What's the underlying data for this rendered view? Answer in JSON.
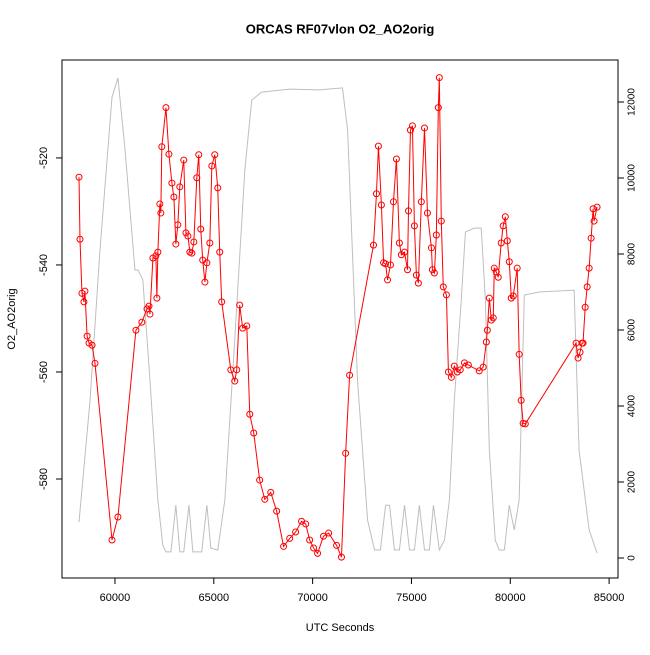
{
  "chart_data": {
    "type": "line",
    "title": "ORCAS RF07vlon O2_AO2orig",
    "xlabel": "UTC Seconds",
    "ylabel": "O2_AO2orig",
    "xlim": [
      57320,
      85450
    ],
    "xticks": [
      60000,
      65000,
      70000,
      75000,
      80000,
      85000
    ],
    "ylim": [
      -598.5,
      -501.7
    ],
    "yticks": [
      -580,
      -560,
      -540,
      -520
    ],
    "y2lim": [
      -526,
      13105
    ],
    "y2ticks": [
      0,
      2000,
      4000,
      6000,
      8000,
      10000,
      12000
    ],
    "series": [
      {
        "color": "#ff0000",
        "markers": true,
        "x": [
          58180,
          58230,
          58330,
          58430,
          58480,
          58590,
          58690,
          58840,
          58990,
          59850,
          60150,
          61060,
          61360,
          61620,
          61720,
          61770,
          61920,
          62070,
          62120,
          62170,
          62270,
          62320,
          62370,
          62580,
          62730,
          62880,
          62980,
          63080,
          63180,
          63280,
          63480,
          63590,
          63690,
          63790,
          63890,
          63990,
          64140,
          64240,
          64340,
          64440,
          64550,
          64650,
          64800,
          64900,
          65050,
          65200,
          65300,
          65400,
          65860,
          66060,
          66160,
          66310,
          66460,
          66670,
          66820,
          67020,
          67320,
          67580,
          67880,
          68180,
          68530,
          68840,
          69140,
          69440,
          69650,
          69850,
          70050,
          70250,
          70550,
          70810,
          71210,
          71460,
          71670,
          71870,
          73080,
          73230,
          73330,
          73480,
          73590,
          73690,
          73790,
          73940,
          74090,
          74240,
          74390,
          74490,
          74650,
          74800,
          74850,
          74950,
          75050,
          75150,
          75250,
          75350,
          75500,
          75660,
          75810,
          76010,
          76060,
          76160,
          76260,
          76360,
          76410,
          76510,
          76610,
          76770,
          76870,
          77020,
          77170,
          77320,
          77470,
          77680,
          77880,
          78430,
          78630,
          78790,
          78840,
          78940,
          79040,
          79140,
          79190,
          79290,
          79390,
          79540,
          79640,
          79750,
          79850,
          79950,
          80050,
          80150,
          80350,
          80450,
          80550,
          80650,
          80760,
          83330,
          83430,
          83530,
          83630,
          83680,
          83790,
          83890,
          83990,
          84090,
          84190,
          84240,
          84390
        ],
        "values": [
          -523.6,
          -535.2,
          -545.3,
          -546.9,
          -544.9,
          -553.3,
          -554.6,
          -555.0,
          -558.4,
          -591.4,
          -587.1,
          -552.2,
          -550.7,
          -548.2,
          -547.7,
          -549.2,
          -538.7,
          -538.3,
          -546.2,
          -537.6,
          -528.6,
          -530.3,
          -517.9,
          -510.6,
          -519.3,
          -524.7,
          -527.3,
          -536.1,
          -532.5,
          -525.4,
          -520.4,
          -534.0,
          -534.6,
          -537.6,
          -537.8,
          -535.7,
          -523.7,
          -519.4,
          -533.3,
          -539.1,
          -543.2,
          -539.6,
          -535.9,
          -521.5,
          -519.4,
          -525.6,
          -537.6,
          -546.9,
          -559.6,
          -561.7,
          -559.6,
          -547.5,
          -551.8,
          -551.4,
          -567.9,
          -571.4,
          -580.2,
          -583.8,
          -582.5,
          -586.0,
          -592.6,
          -591.1,
          -589.9,
          -587.9,
          -588.4,
          -591.4,
          -592.9,
          -593.9,
          -590.7,
          -590.1,
          -592.4,
          -594.6,
          -575.2,
          -560.6,
          -536.3,
          -526.7,
          -517.8,
          -528.8,
          -539.6,
          -539.8,
          -542.8,
          -540.0,
          -528.2,
          -520.2,
          -535.9,
          -538.1,
          -537.6,
          -540.9,
          -529.9,
          -514.8,
          -514.0,
          -532.7,
          -541.9,
          -543.4,
          -528.2,
          -514.4,
          -530.3,
          -536.8,
          -540.9,
          -541.5,
          -534.4,
          -510.6,
          -505.0,
          -531.8,
          -544.1,
          -545.6,
          -560.0,
          -561.0,
          -558.9,
          -560.0,
          -559.6,
          -558.3,
          -558.7,
          -559.8,
          -559.1,
          -554.4,
          -552.2,
          -546.2,
          -550.3,
          -549.9,
          -540.6,
          -541.3,
          -542.3,
          -535.9,
          -532.7,
          -531.0,
          -535.5,
          -539.4,
          -546.2,
          -545.8,
          -540.6,
          -556.7,
          -565.3,
          -569.6,
          -569.7,
          -554.6,
          -557.4,
          -556.3,
          -554.6,
          -554.6,
          -547.9,
          -544.1,
          -540.6,
          -535.0,
          -529.5,
          -531.8,
          -529.2
        ]
      },
      {
        "color": "#bebebe",
        "axis": "y2",
        "markers": false,
        "x": [
          58180,
          58740,
          59240,
          59850,
          60150,
          60510,
          61010,
          61160,
          61410,
          61770,
          62170,
          62420,
          62580,
          62830,
          63080,
          63280,
          63480,
          63740,
          63940,
          64390,
          64650,
          64850,
          65200,
          65560,
          66060,
          66570,
          66920,
          67420,
          68840,
          70350,
          71510,
          71770,
          72270,
          72780,
          73130,
          73430,
          73690,
          73890,
          74140,
          74390,
          74650,
          74900,
          75150,
          75400,
          75660,
          75910,
          76110,
          76410,
          76670,
          76920,
          77170,
          77520,
          77730,
          78180,
          78530,
          78740,
          78940,
          79240,
          79440,
          79700,
          79950,
          80200,
          80450,
          80710,
          81460,
          83230,
          83480,
          83990,
          84390
        ],
        "values": [
          947,
          4160,
          8100,
          12130,
          12630,
          10740,
          7580,
          7580,
          7320,
          4680,
          1530,
          340,
          160,
          160,
          1390,
          160,
          160,
          1390,
          160,
          160,
          1390,
          260,
          210,
          1530,
          5740,
          10210,
          12050,
          12260,
          12340,
          12320,
          12370,
          11260,
          4680,
          1000,
          210,
          210,
          1390,
          1390,
          210,
          210,
          1390,
          210,
          210,
          1390,
          210,
          210,
          1390,
          210,
          470,
          1530,
          4160,
          6790,
          8580,
          8680,
          8680,
          6790,
          2840,
          470,
          210,
          210,
          1390,
          740,
          1530,
          6920,
          7000,
          7050,
          2840,
          740,
          130
        ]
      }
    ]
  }
}
